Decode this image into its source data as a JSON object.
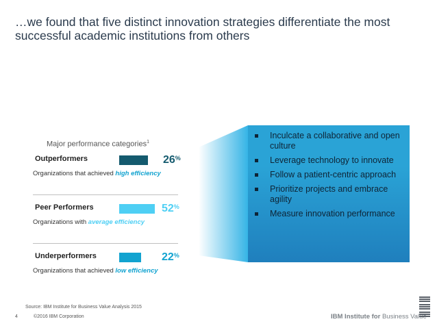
{
  "title": "…we found that five distinct innovation strategies differentiate the most successful academic institutions from others",
  "header": {
    "label": "Major performance categories",
    "sup": "1"
  },
  "categories": [
    {
      "name": "Outperformers",
      "value": 26,
      "unit": "%",
      "desc_prefix": "Organizations that achieved",
      "desc_em": "high efficiency",
      "color": "#145a6e"
    },
    {
      "name": "Peer Performers",
      "value": 52,
      "unit": "%",
      "desc_prefix": "Organizations with",
      "desc_em": "average efficiency",
      "color": "#4ecff4"
    },
    {
      "name": "Underperformers",
      "value": 22,
      "unit": "%",
      "desc_prefix": "Organizations that achieved",
      "desc_em": "low efficiency",
      "color": "#12a3d0"
    }
  ],
  "strategies": [
    "Inculcate a collaborative and open culture",
    "Leverage technology to innovate",
    "Follow a patient-centric approach",
    "Prioritize projects and embrace agility",
    "Measure innovation performance"
  ],
  "source": "Source: IBM Institute for Business Value Analysis 2015",
  "footer": {
    "page": "4",
    "copyright": "©2016 IBM Corporation",
    "brand_bold": "IBM Institute for",
    "brand_rest": " Business Value"
  },
  "logo_text": "IBM"
}
